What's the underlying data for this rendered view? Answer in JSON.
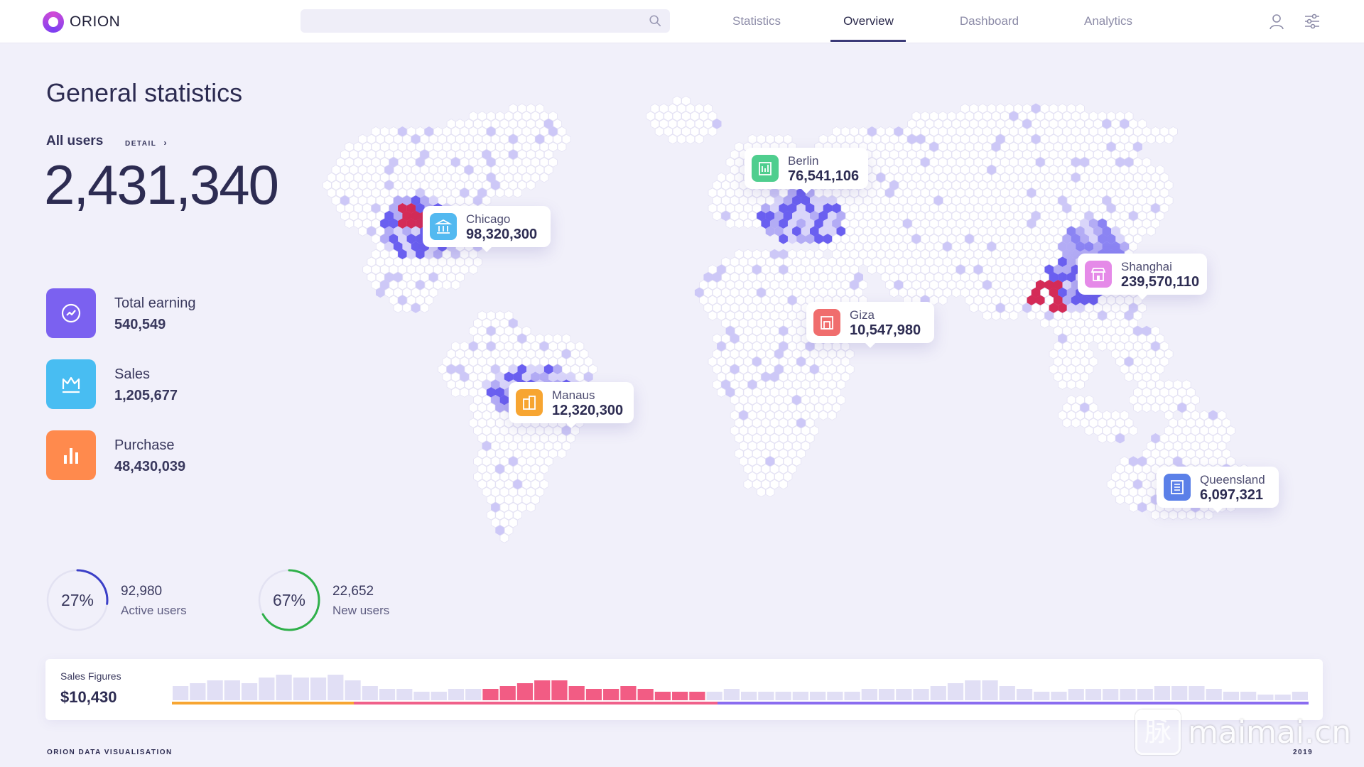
{
  "app": {
    "name": "ORION"
  },
  "search": {
    "placeholder": ""
  },
  "nav": {
    "items": [
      "Statistics",
      "Overview",
      "Dashboard",
      "Analytics"
    ],
    "active": "Overview"
  },
  "overview": {
    "title": "General statistics",
    "users_label": "All users",
    "detail_link": "DETAIL",
    "users_total": "2,431,340"
  },
  "stats": [
    {
      "label": "Total earning",
      "value": "540,549",
      "icon": "trend-icon",
      "color": "#7b61f0"
    },
    {
      "label": "Sales",
      "value": "1,205,677",
      "icon": "crown-icon",
      "color": "#48bdf2"
    },
    {
      "label": "Purchase",
      "value": "48,430,039",
      "icon": "bar-chart-icon",
      "color": "#ff8a4d"
    }
  ],
  "rings": [
    {
      "percent": "27%",
      "fraction": 0.27,
      "value": "92,980",
      "caption": "Active users",
      "color": "#3b3fc7"
    },
    {
      "percent": "67%",
      "fraction": 0.67,
      "value": "22,652",
      "caption": "New users",
      "color": "#2fb04a"
    }
  ],
  "locations": [
    {
      "name": "Chicago",
      "value": "98,320,300",
      "icon": "bank-icon",
      "color": "#53b9f0"
    },
    {
      "name": "Manaus",
      "value": "12,320,300",
      "icon": "building-icon",
      "color": "#f7a531"
    },
    {
      "name": "Berlin",
      "value": "76,541,106",
      "icon": "office-icon",
      "color": "#4fce8e"
    },
    {
      "name": "Giza",
      "value": "10,547,980",
      "icon": "pyramid-icon",
      "color": "#f06d6d"
    },
    {
      "name": "Shanghai",
      "value": "239,570,110",
      "icon": "shop-icon",
      "color": "#e58ae8"
    },
    {
      "name": "Queensland",
      "value": "6,097,321",
      "icon": "grid-building-icon",
      "color": "#5b80e8"
    }
  ],
  "sales": {
    "label": "Sales Figures",
    "value": "$10,430",
    "bars": [
      5,
      6,
      7,
      7,
      6,
      8,
      9,
      8,
      8,
      9,
      7,
      5,
      4,
      4,
      3,
      3,
      4,
      4,
      4,
      5,
      6,
      7,
      7,
      5,
      4,
      4,
      5,
      4,
      3,
      3,
      3,
      3,
      4,
      3,
      3,
      3,
      3,
      3,
      3,
      3,
      4,
      4,
      4,
      4,
      5,
      6,
      7,
      7,
      5,
      4,
      3,
      3,
      4,
      4,
      4,
      4,
      4,
      5,
      5,
      5,
      4,
      3,
      3,
      2,
      2,
      3
    ],
    "bar_colors": {
      "normal": "#e1dff5",
      "highlight": "#f25c84"
    },
    "highlight_range": [
      18,
      30
    ],
    "progress_colors": [
      "#f7a531",
      "#f0608a",
      "#8a6cf0"
    ]
  },
  "footer": {
    "left": "ORION DATA VISUALISATION",
    "right": "2019"
  },
  "watermark": {
    "glyph": "脉",
    "text": "maimai.cn"
  }
}
